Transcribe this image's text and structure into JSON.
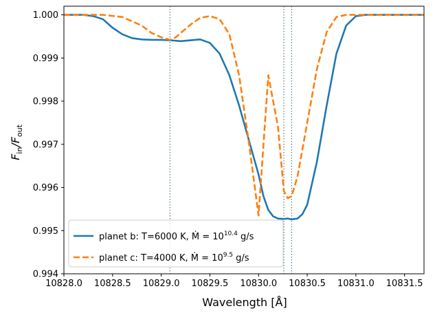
{
  "chart_data": {
    "type": "line",
    "xlabel": "Wavelength [Å]",
    "ylabel": {
      "main": "F",
      "num_sub": "in",
      "slash": "/F",
      "den_sub": "out"
    },
    "xlim": [
      10828.0,
      10831.7
    ],
    "ylim": [
      0.994,
      1.0002
    ],
    "xticks": [
      10828.0,
      10828.5,
      10829.0,
      10829.5,
      10830.0,
      10830.5,
      10831.0,
      10831.5
    ],
    "xtick_labels": [
      "10828.0",
      "10828.5",
      "10829.0",
      "10829.5",
      "10830.0",
      "10830.5",
      "10831.0",
      "10831.5"
    ],
    "yticks": [
      0.994,
      0.995,
      0.996,
      0.997,
      0.998,
      0.999,
      1.0
    ],
    "ytick_labels": [
      "0.994",
      "0.995",
      "0.996",
      "0.997",
      "0.998",
      "0.999",
      "1.000"
    ],
    "vlines": [
      10829.09,
      10830.26,
      10830.34
    ],
    "grid": false,
    "legend_position": "lower-left",
    "series": [
      {
        "name": "planet b",
        "label": {
          "prefix": "planet b: T=6000 K, ",
          "mdot": "Ṁ",
          "eq": " = 10",
          "exp": "10.4",
          "unit": " g/s"
        },
        "color": "#1f77b4",
        "style": "solid",
        "x": [
          10828.0,
          10828.2,
          10828.3,
          10828.4,
          10828.5,
          10828.6,
          10828.7,
          10828.8,
          10828.9,
          10829.0,
          10829.1,
          10829.2,
          10829.3,
          10829.4,
          10829.5,
          10829.6,
          10829.7,
          10829.8,
          10829.9,
          10830.0,
          10830.05,
          10830.1,
          10830.15,
          10830.2,
          10830.26,
          10830.3,
          10830.34,
          10830.4,
          10830.45,
          10830.5,
          10830.6,
          10830.7,
          10830.8,
          10830.9,
          10831.0,
          10831.1,
          10831.2,
          10831.7
        ],
        "y": [
          1.0,
          1.0,
          0.99997,
          0.9999,
          0.9997,
          0.99955,
          0.99946,
          0.99943,
          0.99942,
          0.99942,
          0.99941,
          0.99939,
          0.99941,
          0.99943,
          0.99935,
          0.9991,
          0.9986,
          0.9979,
          0.9971,
          0.9963,
          0.9958,
          0.99548,
          0.99533,
          0.99528,
          0.99527,
          0.99528,
          0.99526,
          0.99528,
          0.99538,
          0.9956,
          0.9966,
          0.9979,
          0.9991,
          0.99975,
          0.99997,
          1.0,
          1.0,
          1.0
        ]
      },
      {
        "name": "planet c",
        "label": {
          "prefix": "planet c: T=4000 K, ",
          "mdot": "Ṁ",
          "eq": " = 10",
          "exp": "9.5",
          "unit": " g/s"
        },
        "color": "#ff7f0e",
        "style": "dashed",
        "x": [
          10828.0,
          10828.4,
          10828.6,
          10828.8,
          10828.9,
          10829.0,
          10829.09,
          10829.15,
          10829.2,
          10829.3,
          10829.4,
          10829.5,
          10829.6,
          10829.7,
          10829.8,
          10829.9,
          10830.0,
          10830.1,
          10830.2,
          10830.26,
          10830.3,
          10830.34,
          10830.4,
          10830.5,
          10830.6,
          10830.7,
          10830.8,
          10830.9,
          10831.0,
          10831.1,
          10831.7
        ],
        "y": [
          1.0,
          1.0,
          0.99995,
          0.99975,
          0.99958,
          0.99948,
          0.99942,
          0.99948,
          0.99958,
          0.99977,
          0.99993,
          0.99997,
          0.9999,
          0.99955,
          0.9986,
          0.99705,
          0.99535,
          0.9986,
          0.9974,
          0.99592,
          0.99575,
          0.9958,
          0.99625,
          0.9975,
          0.99875,
          0.9996,
          0.99995,
          1.0,
          1.0,
          1.0,
          1.0
        ]
      }
    ]
  }
}
